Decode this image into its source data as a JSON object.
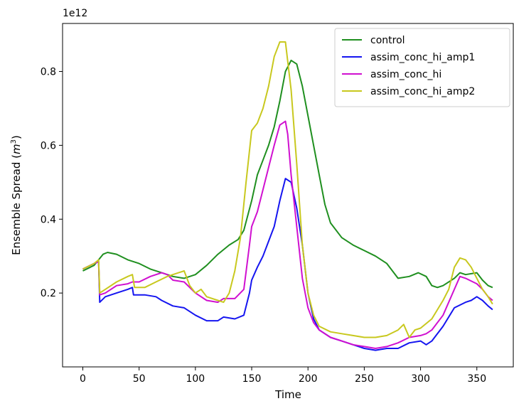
{
  "chart_data": {
    "type": "line",
    "title": "",
    "xlabel": "Time",
    "ylabel": "Ensemble Spread (m³)",
    "ylabel_main": "Ensemble Spread (",
    "ylabel_unit": "m",
    "ylabel_exp": "3",
    "ylabel_close": ")",
    "offset_label": "1e12",
    "y_scale_factor": 1000000000000.0,
    "xlim": [
      -18,
      383
    ],
    "ylim": [
      0.0,
      0.93
    ],
    "xticks": [
      0,
      50,
      100,
      150,
      200,
      250,
      300,
      350
    ],
    "xtick_labels": [
      "0",
      "50",
      "100",
      "150",
      "200",
      "250",
      "300",
      "350"
    ],
    "yticks": [
      0.2,
      0.4,
      0.6,
      0.8
    ],
    "ytick_labels": [
      "0.2",
      "0.4",
      "0.6",
      "0.8"
    ],
    "grid": false,
    "legend_position": "top-right",
    "series": [
      {
        "name": "control",
        "color": "#1f8f1f",
        "points": [
          [
            0,
            0.26
          ],
          [
            10,
            0.275
          ],
          [
            14,
            0.29
          ],
          [
            18,
            0.305
          ],
          [
            22,
            0.31
          ],
          [
            30,
            0.305
          ],
          [
            40,
            0.29
          ],
          [
            50,
            0.28
          ],
          [
            60,
            0.265
          ],
          [
            70,
            0.255
          ],
          [
            80,
            0.245
          ],
          [
            90,
            0.24
          ],
          [
            100,
            0.25
          ],
          [
            110,
            0.275
          ],
          [
            120,
            0.305
          ],
          [
            130,
            0.33
          ],
          [
            138,
            0.345
          ],
          [
            143,
            0.37
          ],
          [
            150,
            0.45
          ],
          [
            155,
            0.52
          ],
          [
            160,
            0.56
          ],
          [
            165,
            0.6
          ],
          [
            170,
            0.65
          ],
          [
            175,
            0.72
          ],
          [
            180,
            0.8
          ],
          [
            185,
            0.83
          ],
          [
            190,
            0.82
          ],
          [
            195,
            0.76
          ],
          [
            200,
            0.68
          ],
          [
            205,
            0.6
          ],
          [
            210,
            0.52
          ],
          [
            215,
            0.44
          ],
          [
            220,
            0.39
          ],
          [
            230,
            0.35
          ],
          [
            240,
            0.33
          ],
          [
            250,
            0.315
          ],
          [
            260,
            0.3
          ],
          [
            270,
            0.28
          ],
          [
            280,
            0.24
          ],
          [
            290,
            0.245
          ],
          [
            298,
            0.255
          ],
          [
            305,
            0.245
          ],
          [
            310,
            0.22
          ],
          [
            315,
            0.215
          ],
          [
            320,
            0.22
          ],
          [
            330,
            0.24
          ],
          [
            335,
            0.255
          ],
          [
            340,
            0.25
          ],
          [
            350,
            0.255
          ],
          [
            355,
            0.235
          ],
          [
            360,
            0.22
          ],
          [
            364,
            0.215
          ]
        ]
      },
      {
        "name": "assim_conc_hi_amp1",
        "color": "#1515f0",
        "points": [
          [
            0,
            0.265
          ],
          [
            10,
            0.28
          ],
          [
            14,
            0.285
          ],
          [
            15,
            0.175
          ],
          [
            20,
            0.19
          ],
          [
            30,
            0.2
          ],
          [
            40,
            0.21
          ],
          [
            44,
            0.215
          ],
          [
            45,
            0.195
          ],
          [
            55,
            0.195
          ],
          [
            65,
            0.19
          ],
          [
            70,
            0.18
          ],
          [
            80,
            0.165
          ],
          [
            90,
            0.16
          ],
          [
            100,
            0.14
          ],
          [
            110,
            0.125
          ],
          [
            120,
            0.125
          ],
          [
            125,
            0.135
          ],
          [
            135,
            0.13
          ],
          [
            143,
            0.14
          ],
          [
            148,
            0.2
          ],
          [
            150,
            0.235
          ],
          [
            155,
            0.27
          ],
          [
            160,
            0.3
          ],
          [
            165,
            0.34
          ],
          [
            170,
            0.38
          ],
          [
            175,
            0.45
          ],
          [
            180,
            0.51
          ],
          [
            185,
            0.5
          ],
          [
            190,
            0.43
          ],
          [
            195,
            0.33
          ],
          [
            200,
            0.2
          ],
          [
            205,
            0.13
          ],
          [
            210,
            0.1
          ],
          [
            220,
            0.08
          ],
          [
            230,
            0.07
          ],
          [
            240,
            0.06
          ],
          [
            250,
            0.05
          ],
          [
            260,
            0.045
          ],
          [
            270,
            0.05
          ],
          [
            280,
            0.05
          ],
          [
            290,
            0.065
          ],
          [
            300,
            0.07
          ],
          [
            305,
            0.06
          ],
          [
            310,
            0.07
          ],
          [
            320,
            0.11
          ],
          [
            330,
            0.16
          ],
          [
            340,
            0.175
          ],
          [
            345,
            0.18
          ],
          [
            350,
            0.19
          ],
          [
            355,
            0.18
          ],
          [
            360,
            0.165
          ],
          [
            364,
            0.155
          ]
        ]
      },
      {
        "name": "assim_conc_hi",
        "color": "#d010d0",
        "points": [
          [
            0,
            0.265
          ],
          [
            10,
            0.28
          ],
          [
            14,
            0.285
          ],
          [
            15,
            0.195
          ],
          [
            20,
            0.2
          ],
          [
            30,
            0.22
          ],
          [
            40,
            0.225
          ],
          [
            44,
            0.23
          ],
          [
            50,
            0.23
          ],
          [
            60,
            0.245
          ],
          [
            70,
            0.255
          ],
          [
            75,
            0.25
          ],
          [
            80,
            0.235
          ],
          [
            90,
            0.23
          ],
          [
            100,
            0.2
          ],
          [
            110,
            0.18
          ],
          [
            120,
            0.175
          ],
          [
            125,
            0.185
          ],
          [
            135,
            0.185
          ],
          [
            143,
            0.21
          ],
          [
            148,
            0.33
          ],
          [
            150,
            0.38
          ],
          [
            155,
            0.42
          ],
          [
            160,
            0.48
          ],
          [
            165,
            0.54
          ],
          [
            170,
            0.6
          ],
          [
            175,
            0.655
          ],
          [
            180,
            0.665
          ],
          [
            182,
            0.63
          ],
          [
            185,
            0.52
          ],
          [
            190,
            0.38
          ],
          [
            195,
            0.24
          ],
          [
            200,
            0.16
          ],
          [
            205,
            0.12
          ],
          [
            210,
            0.1
          ],
          [
            220,
            0.08
          ],
          [
            230,
            0.07
          ],
          [
            240,
            0.06
          ],
          [
            250,
            0.055
          ],
          [
            260,
            0.05
          ],
          [
            270,
            0.055
          ],
          [
            280,
            0.065
          ],
          [
            290,
            0.08
          ],
          [
            300,
            0.085
          ],
          [
            305,
            0.09
          ],
          [
            310,
            0.1
          ],
          [
            320,
            0.14
          ],
          [
            330,
            0.21
          ],
          [
            335,
            0.245
          ],
          [
            340,
            0.24
          ],
          [
            350,
            0.225
          ],
          [
            355,
            0.21
          ],
          [
            360,
            0.19
          ],
          [
            364,
            0.18
          ]
        ]
      },
      {
        "name": "assim_conc_hi_amp2",
        "color": "#c8c81e",
        "points": [
          [
            0,
            0.265
          ],
          [
            10,
            0.28
          ],
          [
            14,
            0.29
          ],
          [
            15,
            0.2
          ],
          [
            20,
            0.21
          ],
          [
            30,
            0.23
          ],
          [
            40,
            0.245
          ],
          [
            44,
            0.25
          ],
          [
            46,
            0.215
          ],
          [
            55,
            0.215
          ],
          [
            65,
            0.23
          ],
          [
            75,
            0.245
          ],
          [
            85,
            0.255
          ],
          [
            90,
            0.26
          ],
          [
            95,
            0.22
          ],
          [
            100,
            0.2
          ],
          [
            105,
            0.21
          ],
          [
            110,
            0.19
          ],
          [
            120,
            0.18
          ],
          [
            125,
            0.175
          ],
          [
            130,
            0.2
          ],
          [
            135,
            0.26
          ],
          [
            140,
            0.35
          ],
          [
            145,
            0.5
          ],
          [
            150,
            0.64
          ],
          [
            155,
            0.66
          ],
          [
            160,
            0.7
          ],
          [
            165,
            0.76
          ],
          [
            170,
            0.84
          ],
          [
            175,
            0.88
          ],
          [
            180,
            0.88
          ],
          [
            185,
            0.75
          ],
          [
            190,
            0.55
          ],
          [
            195,
            0.33
          ],
          [
            200,
            0.2
          ],
          [
            205,
            0.14
          ],
          [
            210,
            0.11
          ],
          [
            220,
            0.095
          ],
          [
            230,
            0.09
          ],
          [
            240,
            0.085
          ],
          [
            250,
            0.08
          ],
          [
            260,
            0.08
          ],
          [
            270,
            0.085
          ],
          [
            280,
            0.1
          ],
          [
            285,
            0.115
          ],
          [
            290,
            0.08
          ],
          [
            295,
            0.1
          ],
          [
            300,
            0.105
          ],
          [
            310,
            0.13
          ],
          [
            320,
            0.18
          ],
          [
            325,
            0.21
          ],
          [
            330,
            0.27
          ],
          [
            335,
            0.295
          ],
          [
            340,
            0.29
          ],
          [
            345,
            0.27
          ],
          [
            350,
            0.24
          ],
          [
            355,
            0.21
          ],
          [
            360,
            0.19
          ],
          [
            364,
            0.17
          ]
        ]
      }
    ]
  }
}
